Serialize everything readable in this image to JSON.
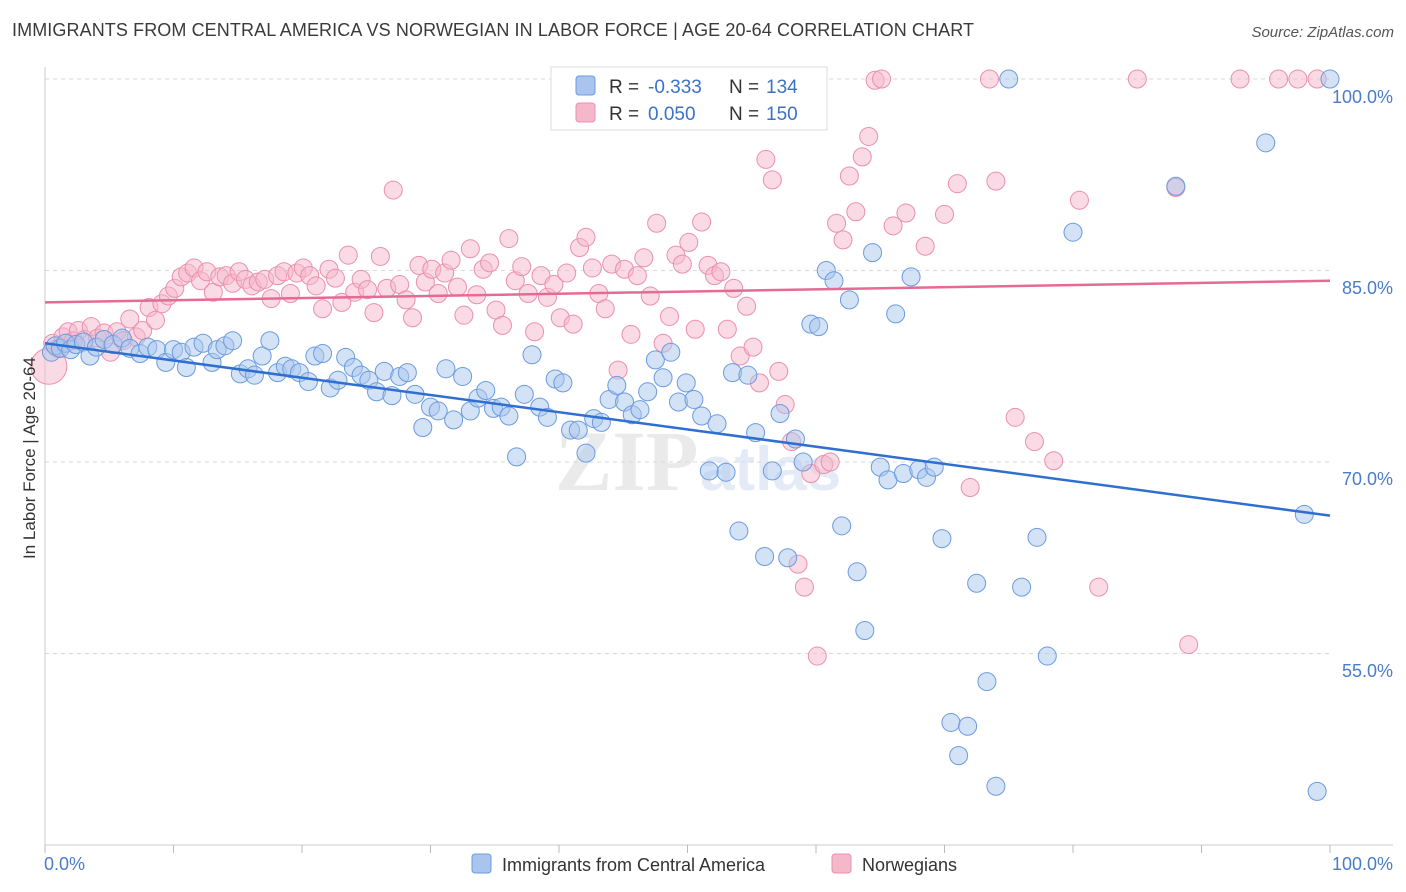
{
  "title": "IMMIGRANTS FROM CENTRAL AMERICA VS NORWEGIAN IN LABOR FORCE | AGE 20-64 CORRELATION CHART",
  "source": "Source: ZipAtlas.com",
  "watermark": {
    "zip": "ZIP",
    "atlas": "atlas"
  },
  "colors": {
    "blue_fill": "#a9c5ee",
    "blue_stroke": "#6a9be0",
    "blue_line": "#2f6fd0",
    "pink_fill": "#f5b8cb",
    "pink_stroke": "#ec8fab",
    "pink_line": "#e56a95",
    "grid": "#d8d8d8",
    "tick_text": "#4a7cc9"
  },
  "legend_top": {
    "r_label": "R =",
    "n_label": "N =",
    "series": [
      {
        "r": "-0.333",
        "n": "134"
      },
      {
        "r": "0.050",
        "n": "150"
      }
    ]
  },
  "chart_data": {
    "type": "scatter",
    "xlabel": "",
    "ylabel": "In Labor Force | Age 20-64",
    "xlim": [
      0,
      100
    ],
    "ylim": [
      40,
      100
    ],
    "x_tick_labels": [
      "0.0%",
      "100.0%"
    ],
    "y_ticks": [
      100,
      85,
      70,
      55
    ],
    "y_tick_labels": [
      "100.0%",
      "85.0%",
      "70.0%",
      "55.0%"
    ],
    "legend": [
      "Immigrants from Central America",
      "Norwegians"
    ],
    "series": [
      {
        "name": "Immigrants from Central America",
        "r": -0.333,
        "n": 134,
        "trend": {
          "x": [
            0,
            100
          ],
          "y": [
            79.3,
            65.8
          ]
        },
        "points": [
          [
            0.5,
            78.6
          ],
          [
            0.8,
            79.1
          ],
          [
            1.2,
            78.9
          ],
          [
            1.6,
            79.3
          ],
          [
            2.0,
            78.8
          ],
          [
            2.4,
            79.2
          ],
          [
            3.0,
            79.4
          ],
          [
            3.5,
            78.3
          ],
          [
            4.0,
            79.0
          ],
          [
            4.6,
            79.6
          ],
          [
            5.3,
            79.2
          ],
          [
            6.0,
            79.7
          ],
          [
            6.6,
            78.9
          ],
          [
            7.4,
            78.5
          ],
          [
            8.0,
            79.0
          ],
          [
            8.7,
            78.8
          ],
          [
            9.4,
            77.8
          ],
          [
            10.0,
            78.8
          ],
          [
            10.6,
            78.6
          ],
          [
            11.0,
            77.4
          ],
          [
            11.6,
            79.0
          ],
          [
            12.3,
            79.3
          ],
          [
            13.0,
            77.8
          ],
          [
            13.4,
            78.8
          ],
          [
            14.0,
            79.1
          ],
          [
            14.6,
            79.5
          ],
          [
            15.2,
            76.9
          ],
          [
            15.8,
            77.3
          ],
          [
            16.3,
            76.8
          ],
          [
            16.9,
            78.3
          ],
          [
            17.5,
            79.5
          ],
          [
            18.1,
            77.0
          ],
          [
            18.7,
            77.5
          ],
          [
            19.2,
            77.3
          ],
          [
            19.8,
            77.0
          ],
          [
            20.5,
            76.3
          ],
          [
            21.0,
            78.3
          ],
          [
            21.6,
            78.5
          ],
          [
            22.2,
            75.8
          ],
          [
            22.8,
            76.4
          ],
          [
            23.4,
            78.2
          ],
          [
            24.0,
            77.4
          ],
          [
            24.6,
            76.8
          ],
          [
            25.2,
            76.4
          ],
          [
            25.8,
            75.5
          ],
          [
            26.4,
            77.1
          ],
          [
            27.0,
            75.2
          ],
          [
            27.6,
            76.7
          ],
          [
            28.2,
            77.0
          ],
          [
            28.8,
            75.3
          ],
          [
            29.4,
            72.7
          ],
          [
            30.0,
            74.3
          ],
          [
            30.6,
            74.0
          ],
          [
            31.2,
            77.3
          ],
          [
            31.8,
            73.3
          ],
          [
            32.5,
            76.7
          ],
          [
            33.1,
            74.0
          ],
          [
            33.7,
            75.0
          ],
          [
            34.3,
            75.6
          ],
          [
            34.9,
            74.2
          ],
          [
            35.5,
            74.3
          ],
          [
            36.1,
            73.6
          ],
          [
            36.7,
            70.4
          ],
          [
            37.3,
            75.3
          ],
          [
            37.9,
            78.4
          ],
          [
            38.5,
            74.3
          ],
          [
            39.1,
            73.5
          ],
          [
            39.7,
            76.5
          ],
          [
            40.3,
            76.2
          ],
          [
            40.9,
            72.5
          ],
          [
            41.5,
            72.5
          ],
          [
            42.1,
            70.7
          ],
          [
            42.7,
            73.4
          ],
          [
            43.3,
            73.1
          ],
          [
            43.9,
            74.9
          ],
          [
            44.5,
            76.0
          ],
          [
            45.1,
            74.7
          ],
          [
            45.7,
            73.7
          ],
          [
            46.3,
            74.1
          ],
          [
            46.9,
            75.5
          ],
          [
            47.5,
            78.0
          ],
          [
            48.1,
            76.6
          ],
          [
            48.7,
            78.6
          ],
          [
            49.3,
            74.7
          ],
          [
            49.9,
            76.2
          ],
          [
            50.5,
            74.9
          ],
          [
            51.1,
            73.6
          ],
          [
            51.7,
            69.3
          ],
          [
            52.3,
            73.0
          ],
          [
            53.0,
            69.2
          ],
          [
            53.5,
            77.0
          ],
          [
            54.0,
            64.6
          ],
          [
            54.7,
            76.8
          ],
          [
            55.3,
            72.3
          ],
          [
            56.0,
            62.6
          ],
          [
            56.6,
            69.3
          ],
          [
            57.2,
            73.8
          ],
          [
            57.8,
            62.5
          ],
          [
            58.4,
            71.8
          ],
          [
            59.0,
            70.0
          ],
          [
            59.6,
            80.8
          ],
          [
            60.2,
            80.6
          ],
          [
            60.8,
            85.0
          ],
          [
            61.4,
            84.2
          ],
          [
            62.0,
            65.0
          ],
          [
            62.6,
            82.7
          ],
          [
            63.2,
            61.4
          ],
          [
            63.8,
            56.8
          ],
          [
            64.4,
            86.4
          ],
          [
            65.0,
            69.6
          ],
          [
            65.6,
            68.6
          ],
          [
            66.2,
            81.6
          ],
          [
            66.8,
            69.1
          ],
          [
            67.4,
            84.5
          ],
          [
            68.0,
            69.4
          ],
          [
            68.6,
            68.8
          ],
          [
            69.2,
            69.6
          ],
          [
            69.8,
            64.0
          ],
          [
            70.5,
            49.6
          ],
          [
            71.1,
            47.0
          ],
          [
            71.8,
            49.3
          ],
          [
            72.5,
            60.5
          ],
          [
            73.3,
            52.8
          ],
          [
            74.0,
            44.6
          ],
          [
            75.0,
            100.0
          ],
          [
            76.0,
            60.2
          ],
          [
            77.2,
            64.1
          ],
          [
            78.0,
            54.8
          ],
          [
            80.0,
            88.0
          ],
          [
            88.0,
            91.6
          ],
          [
            95.0,
            95.0
          ],
          [
            98.0,
            65.9
          ],
          [
            99.0,
            44.2
          ],
          [
            100.0,
            100.0
          ]
        ]
      },
      {
        "name": "Norwegians",
        "r": 0.05,
        "n": 150,
        "trend": {
          "x": [
            0,
            100
          ],
          "y": [
            82.5,
            84.2
          ]
        },
        "points": [
          [
            0.3,
            77.5
          ],
          [
            0.6,
            79.3
          ],
          [
            1.0,
            78.9
          ],
          [
            1.4,
            79.8
          ],
          [
            1.8,
            80.2
          ],
          [
            2.2,
            79.5
          ],
          [
            2.6,
            80.3
          ],
          [
            3.1,
            79.6
          ],
          [
            3.6,
            80.6
          ],
          [
            4.1,
            79.7
          ],
          [
            4.6,
            80.1
          ],
          [
            5.1,
            78.6
          ],
          [
            5.6,
            80.2
          ],
          [
            6.1,
            79.5
          ],
          [
            6.6,
            81.2
          ],
          [
            7.1,
            79.8
          ],
          [
            7.6,
            80.3
          ],
          [
            8.1,
            82.1
          ],
          [
            8.6,
            81.1
          ],
          [
            9.1,
            82.4
          ],
          [
            9.6,
            83.0
          ],
          [
            10.1,
            83.6
          ],
          [
            10.6,
            84.5
          ],
          [
            11.1,
            84.8
          ],
          [
            11.6,
            85.2
          ],
          [
            12.1,
            84.2
          ],
          [
            12.6,
            84.9
          ],
          [
            13.1,
            83.3
          ],
          [
            13.6,
            84.5
          ],
          [
            14.1,
            84.6
          ],
          [
            14.6,
            84.0
          ],
          [
            15.1,
            84.9
          ],
          [
            15.6,
            84.3
          ],
          [
            16.1,
            83.8
          ],
          [
            16.6,
            84.1
          ],
          [
            17.1,
            84.3
          ],
          [
            17.6,
            82.8
          ],
          [
            18.1,
            84.6
          ],
          [
            18.6,
            84.9
          ],
          [
            19.1,
            83.2
          ],
          [
            19.6,
            84.8
          ],
          [
            20.1,
            85.2
          ],
          [
            20.6,
            84.6
          ],
          [
            21.1,
            83.8
          ],
          [
            21.6,
            82.0
          ],
          [
            22.1,
            85.1
          ],
          [
            22.6,
            84.4
          ],
          [
            23.1,
            82.5
          ],
          [
            23.6,
            86.2
          ],
          [
            24.1,
            83.3
          ],
          [
            24.6,
            84.3
          ],
          [
            25.1,
            83.5
          ],
          [
            25.6,
            81.7
          ],
          [
            26.1,
            86.1
          ],
          [
            26.6,
            83.6
          ],
          [
            27.1,
            91.3
          ],
          [
            27.6,
            83.9
          ],
          [
            28.1,
            82.7
          ],
          [
            28.6,
            81.3
          ],
          [
            29.1,
            85.4
          ],
          [
            29.6,
            84.1
          ],
          [
            30.1,
            85.1
          ],
          [
            30.6,
            83.2
          ],
          [
            31.1,
            84.8
          ],
          [
            31.6,
            85.8
          ],
          [
            32.1,
            83.7
          ],
          [
            32.6,
            81.5
          ],
          [
            33.1,
            86.7
          ],
          [
            33.6,
            83.1
          ],
          [
            34.1,
            85.1
          ],
          [
            34.6,
            85.6
          ],
          [
            35.1,
            81.9
          ],
          [
            35.6,
            80.7
          ],
          [
            36.1,
            87.5
          ],
          [
            36.6,
            84.2
          ],
          [
            37.1,
            85.3
          ],
          [
            37.6,
            83.2
          ],
          [
            38.1,
            80.2
          ],
          [
            38.6,
            84.6
          ],
          [
            39.1,
            82.9
          ],
          [
            39.6,
            83.9
          ],
          [
            40.1,
            81.3
          ],
          [
            40.6,
            84.8
          ],
          [
            41.1,
            80.8
          ],
          [
            41.6,
            86.8
          ],
          [
            42.1,
            87.6
          ],
          [
            42.6,
            85.2
          ],
          [
            43.1,
            83.2
          ],
          [
            43.6,
            82.0
          ],
          [
            44.1,
            85.5
          ],
          [
            44.6,
            77.2
          ],
          [
            45.1,
            85.1
          ],
          [
            45.6,
            80.0
          ],
          [
            46.1,
            84.6
          ],
          [
            46.6,
            86.0
          ],
          [
            47.1,
            83.0
          ],
          [
            47.6,
            88.7
          ],
          [
            48.1,
            79.3
          ],
          [
            48.6,
            81.4
          ],
          [
            49.1,
            86.2
          ],
          [
            49.6,
            85.5
          ],
          [
            50.1,
            87.2
          ],
          [
            50.6,
            80.4
          ],
          [
            51.1,
            88.8
          ],
          [
            51.6,
            85.4
          ],
          [
            52.1,
            84.6
          ],
          [
            52.6,
            84.9
          ],
          [
            53.1,
            80.4
          ],
          [
            53.6,
            83.6
          ],
          [
            54.1,
            78.3
          ],
          [
            54.6,
            82.2
          ],
          [
            55.1,
            79.0
          ],
          [
            55.6,
            76.2
          ],
          [
            56.1,
            93.7
          ],
          [
            56.6,
            92.1
          ],
          [
            57.1,
            77.1
          ],
          [
            57.6,
            74.5
          ],
          [
            58.1,
            71.6
          ],
          [
            58.6,
            62.0
          ],
          [
            59.1,
            60.2
          ],
          [
            59.6,
            69.1
          ],
          [
            60.1,
            54.8
          ],
          [
            60.6,
            69.8
          ],
          [
            61.1,
            70.0
          ],
          [
            61.6,
            88.7
          ],
          [
            62.1,
            87.4
          ],
          [
            62.6,
            92.4
          ],
          [
            63.1,
            89.6
          ],
          [
            63.6,
            93.9
          ],
          [
            64.1,
            95.5
          ],
          [
            64.6,
            99.9
          ],
          [
            65.1,
            100.0
          ],
          [
            66.0,
            88.5
          ],
          [
            67.0,
            89.5
          ],
          [
            68.5,
            86.9
          ],
          [
            70.0,
            89.4
          ],
          [
            71.0,
            91.8
          ],
          [
            72.0,
            68.0
          ],
          [
            73.5,
            100.0
          ],
          [
            74.0,
            92.0
          ],
          [
            75.5,
            73.5
          ],
          [
            77.0,
            71.6
          ],
          [
            78.5,
            70.1
          ],
          [
            80.5,
            90.5
          ],
          [
            82.0,
            60.2
          ],
          [
            85.0,
            100.0
          ],
          [
            88.0,
            91.5
          ],
          [
            89.0,
            55.7
          ],
          [
            93.0,
            100.0
          ],
          [
            96.0,
            100.0
          ],
          [
            97.5,
            100.0
          ],
          [
            99.0,
            100.0
          ]
        ]
      }
    ]
  }
}
